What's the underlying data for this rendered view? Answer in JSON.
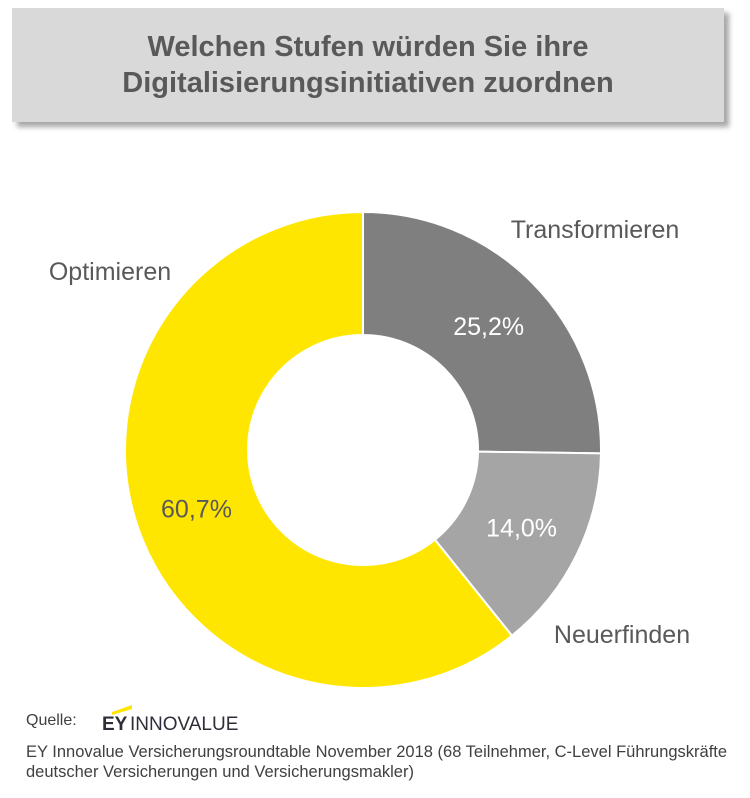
{
  "title": "Welchen Stufen würden Sie ihre Digitalisierungsinitiativen zuordnen",
  "chart_data": {
    "type": "pie",
    "donut": true,
    "slices": [
      {
        "label": "Transformieren",
        "value": 25.2,
        "display": "25,2%",
        "color": "#7f7f7f",
        "value_color": "#ffffff"
      },
      {
        "label": "Neuerfinden",
        "value": 14.0,
        "display": "14,0%",
        "color": "#a5a5a5",
        "value_color": "#ffffff"
      },
      {
        "label": "Optimieren",
        "value": 60.7,
        "display": "60,7%",
        "color": "#ffe600",
        "value_color": "#595959"
      }
    ]
  },
  "source": {
    "label": "Quelle:",
    "logo_ey": "EY",
    "logo_text": "INNOVALUE",
    "note": "EY Innovalue Versicherungsroundtable November 2018 (68 Teilnehmer, C-Level Führungskräfte deutscher Versicherungen und Versicherungsmakler)"
  }
}
